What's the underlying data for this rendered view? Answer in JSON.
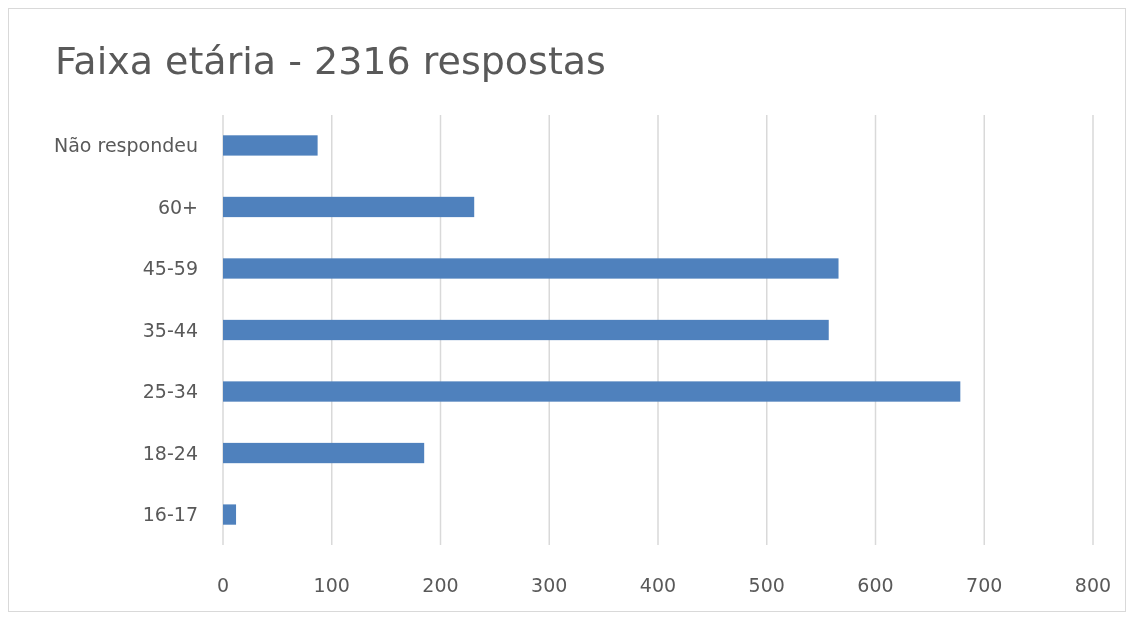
{
  "chart_data": {
    "type": "bar",
    "orientation": "horizontal",
    "title": "Faixa etária - 2316 respostas",
    "categories": [
      "Não respondeu",
      "60+",
      "45-59",
      "35-44",
      "25-34",
      "18-24",
      "16-17"
    ],
    "values": [
      87,
      231,
      566,
      557,
      678,
      185,
      12
    ],
    "color": "#4f81bd",
    "xlim": [
      0,
      800
    ],
    "xticks": [
      0,
      100,
      200,
      300,
      400,
      500,
      600,
      700,
      800
    ],
    "grid": "x"
  }
}
